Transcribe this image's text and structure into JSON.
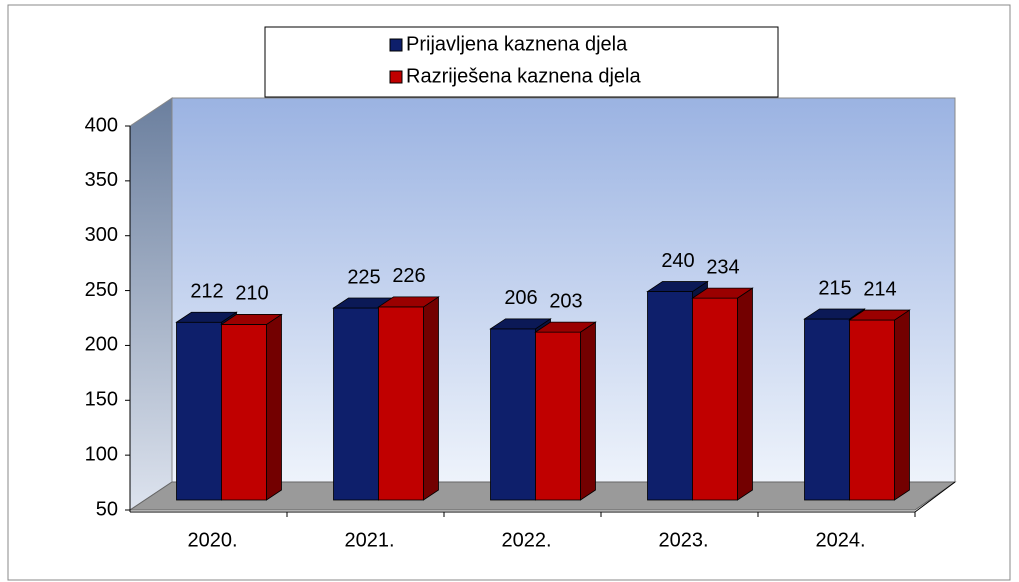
{
  "chart_data": {
    "type": "bar3d",
    "categories": [
      "2020.",
      "2021.",
      "2022.",
      "2023.",
      "2024."
    ],
    "series": [
      {
        "name": "Prijavljena kaznena djela",
        "color": "#0e1f6b",
        "values": [
          212,
          225,
          206,
          240,
          215
        ]
      },
      {
        "name": "Razriješena kaznena djela",
        "color": "#c00000",
        "values": [
          210,
          226,
          203,
          234,
          214
        ]
      }
    ],
    "ylim": [
      50,
      400
    ],
    "yticks": [
      50,
      100,
      150,
      200,
      250,
      300,
      350,
      400
    ]
  }
}
